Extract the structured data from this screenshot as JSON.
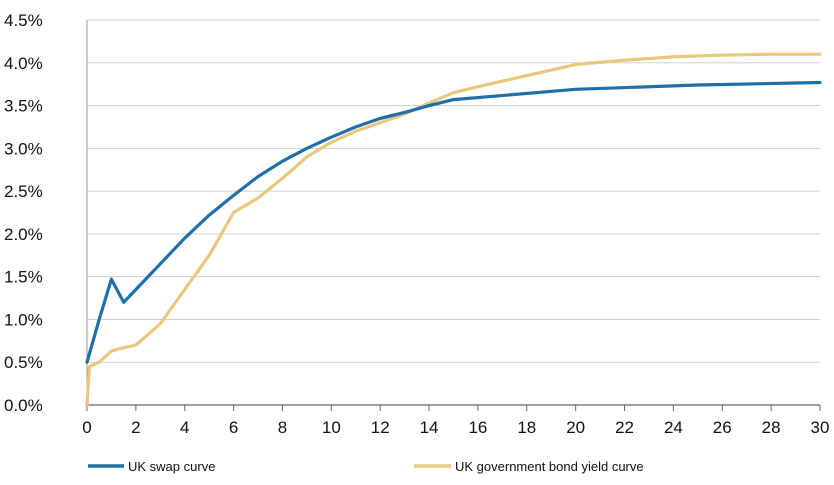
{
  "chart_data": {
    "type": "line",
    "title": "",
    "xlabel": "",
    "ylabel": "",
    "xlim": [
      0,
      30
    ],
    "ylim": [
      0,
      4.5
    ],
    "x_ticks": [
      0,
      2,
      4,
      6,
      8,
      10,
      12,
      14,
      16,
      18,
      20,
      22,
      24,
      26,
      28,
      30
    ],
    "y_ticks": [
      0,
      0.5,
      1.0,
      1.5,
      2.0,
      2.5,
      3.0,
      3.5,
      4.0,
      4.5
    ],
    "x_tick_labels": [
      "0",
      "2",
      "4",
      "6",
      "8",
      "10",
      "12",
      "14",
      "16",
      "18",
      "20",
      "22",
      "24",
      "26",
      "28",
      "30"
    ],
    "y_tick_labels": [
      "0.0%",
      "0.5%",
      "1.0%",
      "1.5%",
      "2.0%",
      "2.5%",
      "3.0%",
      "3.5%",
      "4.0%",
      "4.5%"
    ],
    "grid": "horizontal",
    "legend_position": "bottom",
    "series": [
      {
        "name": "UK swap curve",
        "color": "#1f6fa8",
        "points": [
          [
            0,
            0.5
          ],
          [
            0.5,
            1.0
          ],
          [
            1,
            1.47
          ],
          [
            1.5,
            1.2
          ],
          [
            2,
            1.35
          ],
          [
            3,
            1.65
          ],
          [
            4,
            1.95
          ],
          [
            5,
            2.22
          ],
          [
            6,
            2.45
          ],
          [
            7,
            2.67
          ],
          [
            8,
            2.85
          ],
          [
            9,
            3.0
          ],
          [
            10,
            3.13
          ],
          [
            11,
            3.25
          ],
          [
            12,
            3.35
          ],
          [
            13,
            3.42
          ],
          [
            14,
            3.5
          ],
          [
            15,
            3.57
          ],
          [
            20,
            3.69
          ],
          [
            25,
            3.74
          ],
          [
            30,
            3.77
          ]
        ]
      },
      {
        "name": "UK government bond yield curve",
        "color": "#e9c77e",
        "points": [
          [
            0,
            0.0
          ],
          [
            0.1,
            0.45
          ],
          [
            0.5,
            0.5
          ],
          [
            1,
            0.63
          ],
          [
            1.5,
            0.67
          ],
          [
            2,
            0.7
          ],
          [
            3,
            0.95
          ],
          [
            4,
            1.35
          ],
          [
            5,
            1.75
          ],
          [
            6,
            2.25
          ],
          [
            7,
            2.42
          ],
          [
            8,
            2.65
          ],
          [
            9,
            2.9
          ],
          [
            10,
            3.07
          ],
          [
            11,
            3.2
          ],
          [
            12,
            3.3
          ],
          [
            13,
            3.4
          ],
          [
            14,
            3.53
          ],
          [
            15,
            3.65
          ],
          [
            16,
            3.72
          ],
          [
            18,
            3.85
          ],
          [
            20,
            3.98
          ],
          [
            22,
            4.03
          ],
          [
            24,
            4.07
          ],
          [
            26,
            4.09
          ],
          [
            28,
            4.1
          ],
          [
            30,
            4.1
          ]
        ]
      }
    ]
  }
}
